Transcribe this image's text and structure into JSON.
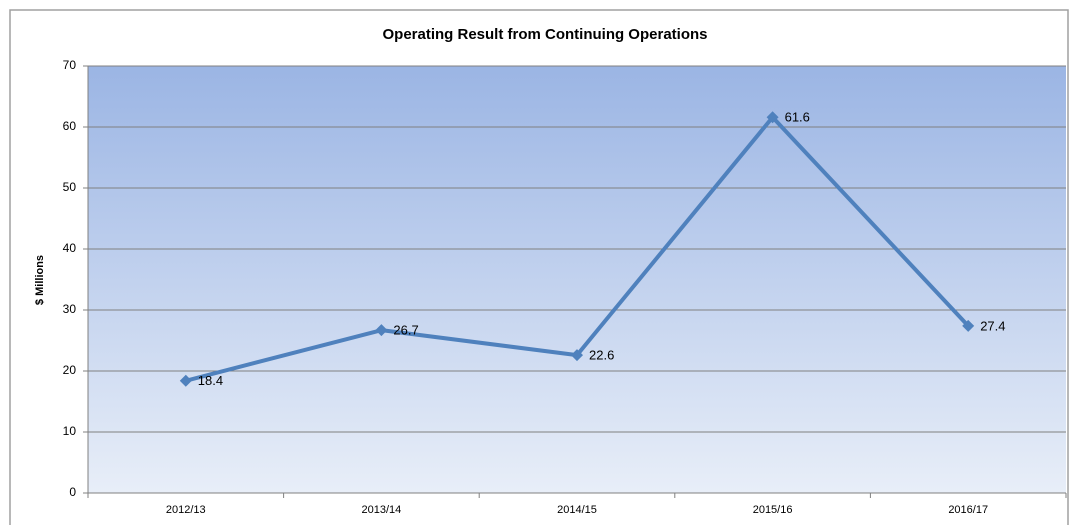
{
  "chart_data": {
    "type": "line",
    "title": "Operating Result from Continuing Operations",
    "y_label": "$ Millions",
    "categories": [
      "2012/13",
      "2013/14",
      "2014/15",
      "2015/16",
      "2016/17"
    ],
    "series": [
      {
        "name": "Operating Result",
        "color": "#4f81bd",
        "values": [
          18.4,
          26.7,
          22.6,
          61.6,
          27.4
        ]
      }
    ],
    "ylim": [
      0,
      70
    ],
    "yticks": [
      0,
      10,
      20,
      30,
      40,
      50,
      60,
      70
    ],
    "grid": true,
    "data_labels": true
  }
}
